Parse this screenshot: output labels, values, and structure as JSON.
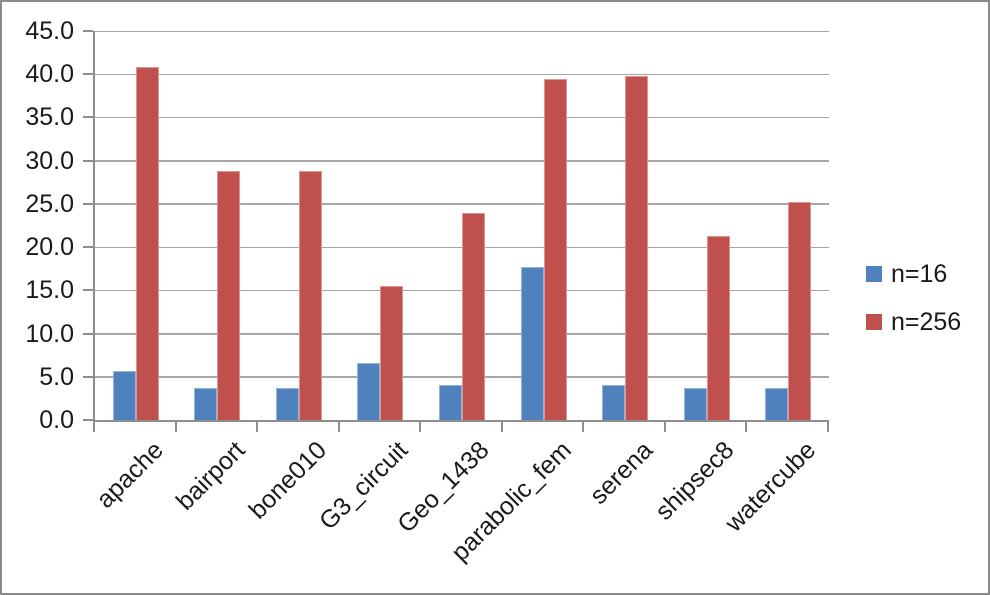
{
  "chart_data": {
    "type": "bar",
    "categories": [
      "apache",
      "bairport",
      "bone010",
      "G3_circuit",
      "Geo_1438",
      "parabolic_fem",
      "serena",
      "shipsec8",
      "watercube"
    ],
    "series": [
      {
        "name": "n=16",
        "color": "#4F81BD",
        "border_color": "#95B3D7",
        "values": [
          5.7,
          3.7,
          3.7,
          6.6,
          4.0,
          17.7,
          4.0,
          3.7,
          3.7
        ]
      },
      {
        "name": "n=256",
        "color": "#C0504D",
        "border_color": "#D99694",
        "values": [
          40.8,
          28.8,
          28.8,
          15.5,
          24.0,
          39.5,
          39.8,
          21.3,
          25.2
        ]
      }
    ],
    "title": "",
    "xlabel": "",
    "ylabel": "",
    "ylim": [
      0,
      45
    ],
    "ytick_step": 5,
    "ytick_labels": [
      "0.0",
      "5.0",
      "10.0",
      "15.0",
      "20.0",
      "25.0",
      "30.0",
      "35.0",
      "40.0",
      "45.0"
    ],
    "grid": true,
    "legend_position": "right"
  },
  "colors": {
    "gridline": "#A6A6A6",
    "axis": "#8E8E8E",
    "text": "#1A1A1A",
    "background": "#FFFFFF",
    "frame_border": "#8B8B8B"
  }
}
